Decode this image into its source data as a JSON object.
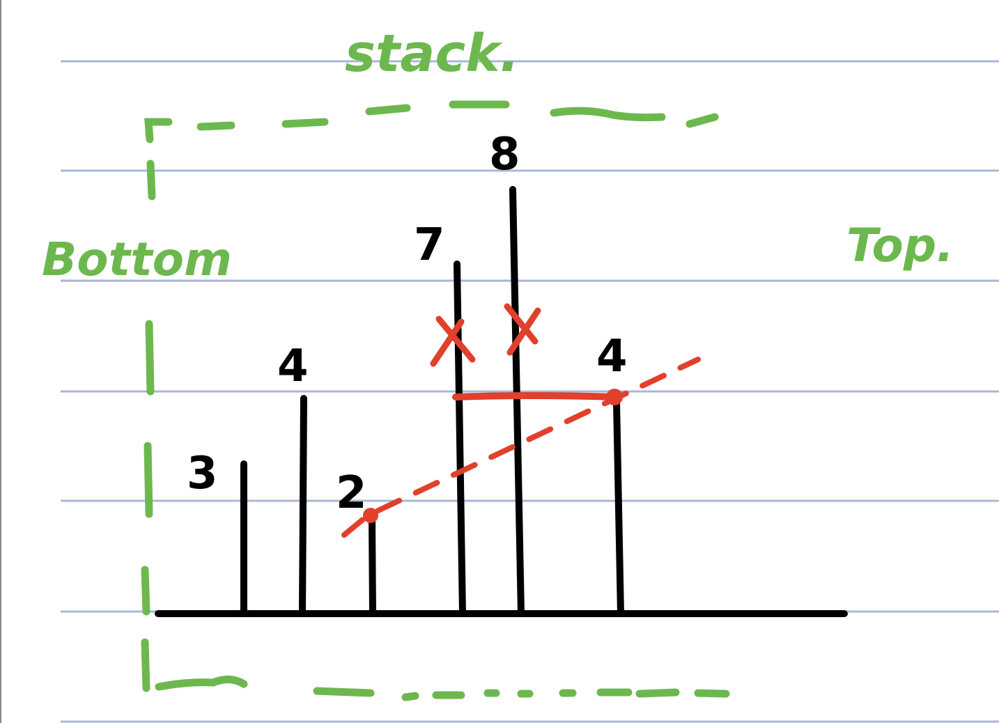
{
  "colors": {
    "rule": "#a9b7d4",
    "ink": "#000000",
    "stack": "#6db84e",
    "mark": "#e0402c"
  },
  "labels": {
    "stack": "stack.",
    "bottom": "Bottom",
    "top": "Top."
  },
  "bars": [
    {
      "value": "3"
    },
    {
      "value": "4"
    },
    {
      "value": "2"
    },
    {
      "value": "7",
      "crossed": true
    },
    {
      "value": "8",
      "crossed": true
    },
    {
      "value": "4"
    }
  ],
  "marks": {
    "cross_glyph": "X"
  }
}
